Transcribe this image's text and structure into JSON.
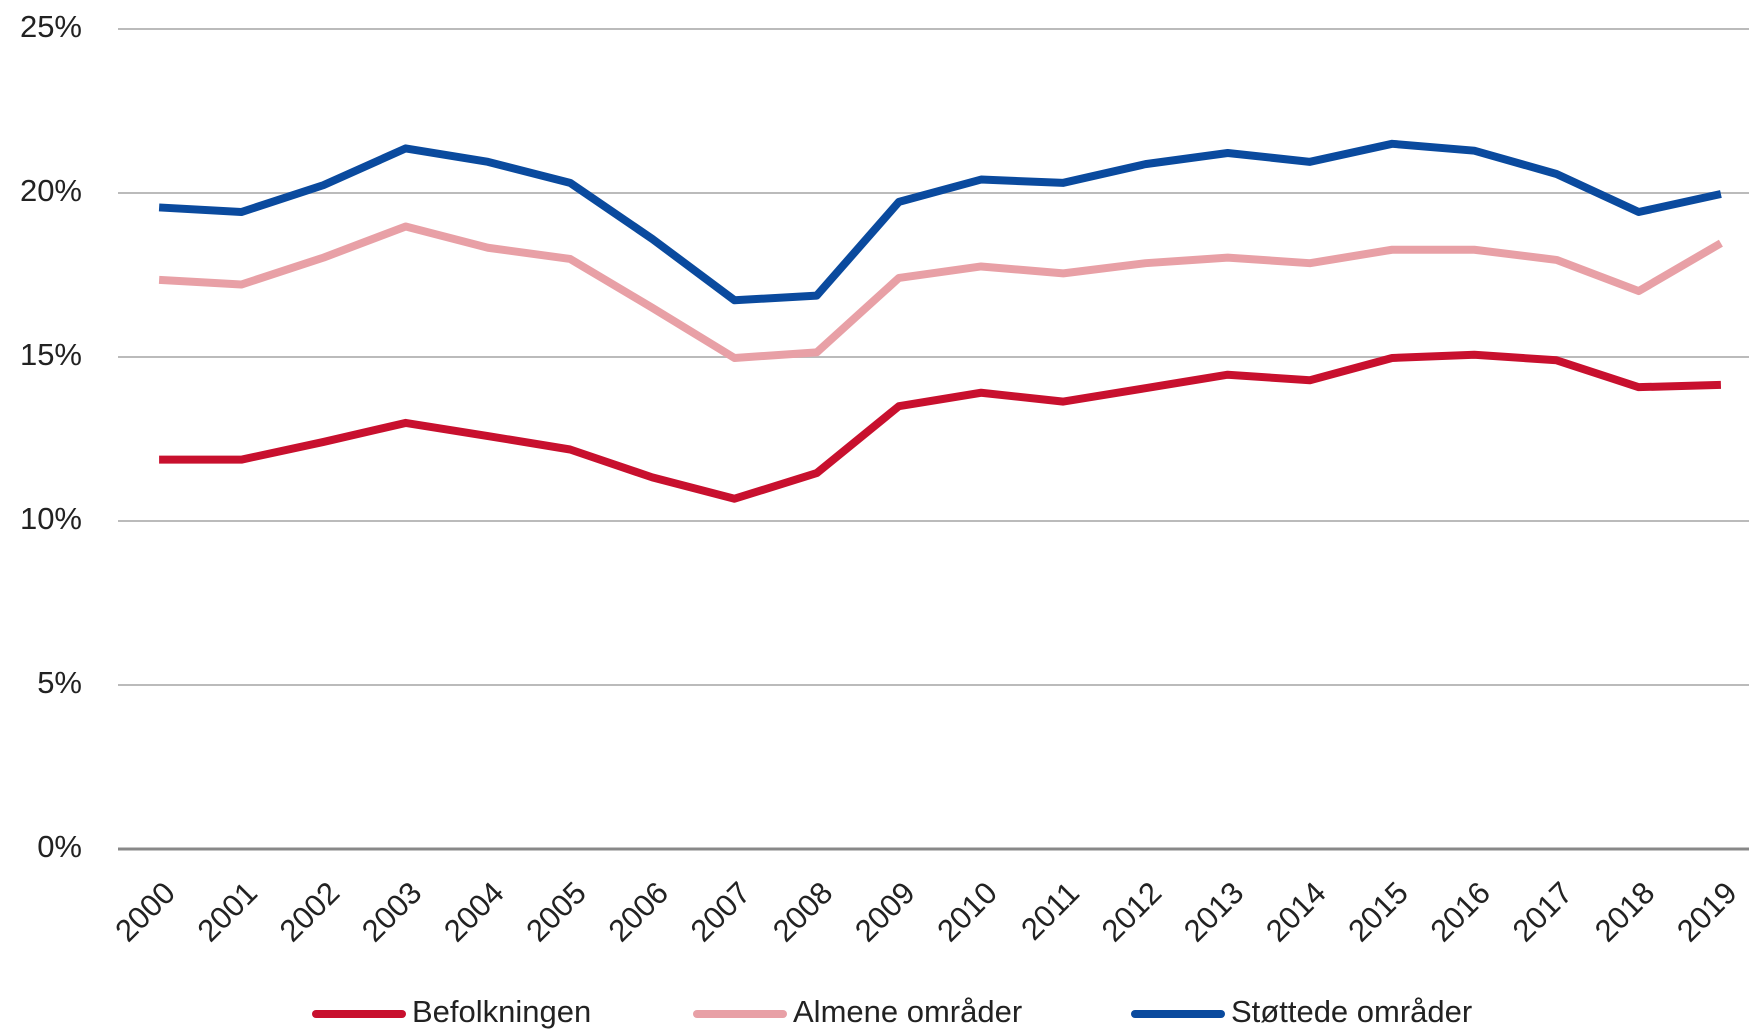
{
  "chart_data": {
    "type": "line",
    "categories": [
      "2000",
      "2001",
      "2002",
      "2003",
      "2004",
      "2005",
      "2006",
      "2007",
      "2008",
      "2009",
      "2010",
      "2011",
      "2012",
      "2013",
      "2014",
      "2015",
      "2016",
      "2017",
      "2018",
      "2019"
    ],
    "series": [
      {
        "name": "Befolkningen",
        "color": "#c8102e",
        "values": [
          11.87,
          11.87,
          12.41,
          12.99,
          12.59,
          12.18,
          11.33,
          10.68,
          11.46,
          13.5,
          13.91,
          13.64,
          14.05,
          14.46,
          14.29,
          14.97,
          15.07,
          14.9,
          14.08,
          14.15
        ]
      },
      {
        "name": "Almene områder",
        "color": "#e8a0a6",
        "values": [
          17.35,
          17.21,
          18.03,
          18.98,
          18.33,
          17.99,
          16.5,
          14.97,
          15.14,
          17.41,
          17.76,
          17.55,
          17.86,
          18.03,
          17.86,
          18.27,
          18.27,
          17.96,
          17.01,
          18.47
        ]
      },
      {
        "name": "Støttede områder",
        "color": "#0a4a9e",
        "values": [
          19.56,
          19.42,
          20.24,
          21.36,
          20.95,
          20.31,
          18.6,
          16.73,
          16.87,
          19.73,
          20.41,
          20.31,
          20.88,
          21.22,
          20.95,
          21.5,
          21.29,
          20.58,
          19.42,
          19.97
        ]
      }
    ],
    "ylim": [
      0,
      25
    ],
    "yticks": [
      {
        "value": 0,
        "label": "0%"
      },
      {
        "value": 5,
        "label": "5%"
      },
      {
        "value": 10,
        "label": "10%"
      },
      {
        "value": 15,
        "label": "15%"
      },
      {
        "value": 20,
        "label": "20%"
      },
      {
        "value": 25,
        "label": "25%"
      }
    ],
    "grid": true,
    "legend": "bottom"
  }
}
